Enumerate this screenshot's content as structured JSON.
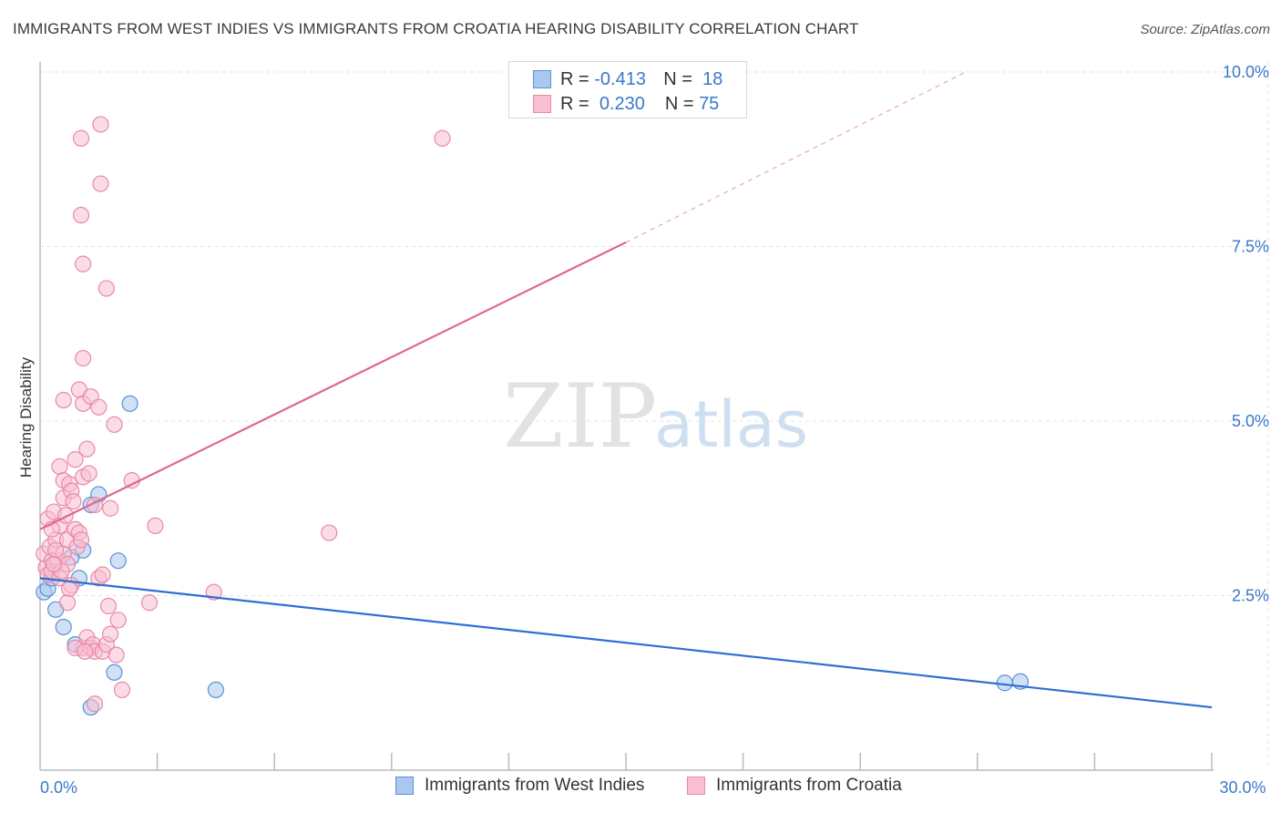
{
  "title": "IMMIGRANTS FROM WEST INDIES VS IMMIGRANTS FROM CROATIA HEARING DISABILITY CORRELATION CHART",
  "source": "Source: ZipAtlas.com",
  "watermark": {
    "zip": "ZIP",
    "atlas": "atlas"
  },
  "stats": {
    "r_label": "R =",
    "n_label": "N =",
    "west_indies": {
      "r": "-0.413",
      "n": "18"
    },
    "croatia": {
      "r": "0.230",
      "n": "75"
    }
  },
  "colors": {
    "west_indies_fill": "#aac8ef",
    "west_indies_stroke": "#5b90d8",
    "west_indies_line": "#2f6fd0",
    "croatia_fill": "#f7bfd0",
    "croatia_stroke": "#e889a8",
    "croatia_line": "#e06890",
    "tick_label": "#3a78c9",
    "grid": "#e3e3e3"
  },
  "chart_data": {
    "type": "scatter",
    "title": "IMMIGRANTS FROM WEST INDIES VS IMMIGRANTS FROM CROATIA HEARING DISABILITY CORRELATION CHART",
    "xlabel": "",
    "ylabel": "Hearing Disability",
    "xlim": [
      0,
      30
    ],
    "ylim": [
      0,
      10.5
    ],
    "x_tick_labels": [
      {
        "value": 0,
        "label": "0.0%"
      },
      {
        "value": 30,
        "label": "30.0%"
      }
    ],
    "y_tick_labels": [
      {
        "value": 2.5,
        "label": "2.5%"
      },
      {
        "value": 5.0,
        "label": "5.0%"
      },
      {
        "value": 7.5,
        "label": "7.5%"
      },
      {
        "value": 10.0,
        "label": "10.0%"
      }
    ],
    "grid": true,
    "series": [
      {
        "name": "Immigrants from West Indies",
        "key": "west_indies",
        "points": [
          [
            0.1,
            2.55
          ],
          [
            0.2,
            2.6
          ],
          [
            0.3,
            2.75
          ],
          [
            0.4,
            2.3
          ],
          [
            0.6,
            2.05
          ],
          [
            0.8,
            3.05
          ],
          [
            0.9,
            1.8
          ],
          [
            1.0,
            2.75
          ],
          [
            1.1,
            3.15
          ],
          [
            1.3,
            3.8
          ],
          [
            1.5,
            3.95
          ],
          [
            1.9,
            1.4
          ],
          [
            2.0,
            3.0
          ],
          [
            2.3,
            5.25
          ],
          [
            1.3,
            0.9
          ],
          [
            4.5,
            1.15
          ],
          [
            24.7,
            1.25
          ],
          [
            25.1,
            1.27
          ]
        ],
        "trend": {
          "x0": 0,
          "y0": 2.75,
          "x1": 30,
          "y1": 0.9
        }
      },
      {
        "name": "Immigrants from Croatia",
        "key": "croatia",
        "points": [
          [
            0.1,
            3.1
          ],
          [
            0.15,
            2.9
          ],
          [
            0.2,
            3.6
          ],
          [
            0.2,
            2.8
          ],
          [
            0.25,
            3.2
          ],
          [
            0.3,
            3.0
          ],
          [
            0.3,
            2.85
          ],
          [
            0.35,
            3.7
          ],
          [
            0.4,
            3.3
          ],
          [
            0.45,
            3.0
          ],
          [
            0.5,
            2.75
          ],
          [
            0.5,
            3.5
          ],
          [
            0.5,
            4.35
          ],
          [
            0.6,
            4.15
          ],
          [
            0.6,
            3.9
          ],
          [
            0.6,
            3.1
          ],
          [
            0.6,
            5.3
          ],
          [
            0.7,
            2.95
          ],
          [
            0.7,
            3.3
          ],
          [
            0.7,
            2.4
          ],
          [
            0.75,
            4.1
          ],
          [
            0.8,
            2.65
          ],
          [
            0.8,
            4.0
          ],
          [
            0.85,
            3.85
          ],
          [
            0.9,
            4.45
          ],
          [
            0.9,
            3.45
          ],
          [
            0.95,
            3.2
          ],
          [
            1.0,
            5.45
          ],
          [
            1.0,
            3.4
          ],
          [
            1.05,
            3.3
          ],
          [
            1.1,
            4.2
          ],
          [
            1.1,
            5.25
          ],
          [
            1.1,
            5.9
          ],
          [
            1.1,
            1.75
          ],
          [
            1.2,
            4.6
          ],
          [
            1.2,
            1.9
          ],
          [
            1.25,
            4.25
          ],
          [
            1.3,
            1.75
          ],
          [
            1.3,
            5.35
          ],
          [
            1.35,
            1.8
          ],
          [
            1.4,
            3.8
          ],
          [
            1.4,
            1.7
          ],
          [
            1.5,
            5.2
          ],
          [
            1.5,
            2.75
          ],
          [
            1.6,
            2.8
          ],
          [
            1.6,
            1.7
          ],
          [
            1.7,
            1.8
          ],
          [
            1.75,
            2.35
          ],
          [
            1.8,
            1.95
          ],
          [
            1.9,
            4.95
          ],
          [
            1.95,
            1.65
          ],
          [
            2.0,
            2.15
          ],
          [
            1.8,
            3.75
          ],
          [
            1.4,
            0.95
          ],
          [
            2.1,
            1.15
          ],
          [
            1.05,
            7.95
          ],
          [
            1.05,
            9.05
          ],
          [
            1.1,
            7.25
          ],
          [
            1.55,
            9.25
          ],
          [
            1.55,
            8.4
          ],
          [
            1.7,
            6.9
          ],
          [
            2.35,
            4.15
          ],
          [
            2.95,
            3.5
          ],
          [
            2.8,
            2.4
          ],
          [
            4.45,
            2.55
          ],
          [
            7.4,
            3.4
          ],
          [
            10.3,
            9.05
          ],
          [
            0.9,
            1.75
          ],
          [
            0.4,
            3.15
          ],
          [
            0.3,
            3.45
          ],
          [
            0.55,
            2.85
          ],
          [
            0.65,
            3.65
          ],
          [
            0.75,
            2.6
          ],
          [
            1.15,
            1.7
          ],
          [
            0.35,
            2.95
          ]
        ],
        "trend": {
          "x0": 0,
          "y0": 3.45,
          "x1": 15,
          "y1": 7.56
        },
        "trend_extension": {
          "x0": 15,
          "y0": 7.56,
          "x1": 23.7,
          "y1": 10.0
        }
      }
    ]
  }
}
